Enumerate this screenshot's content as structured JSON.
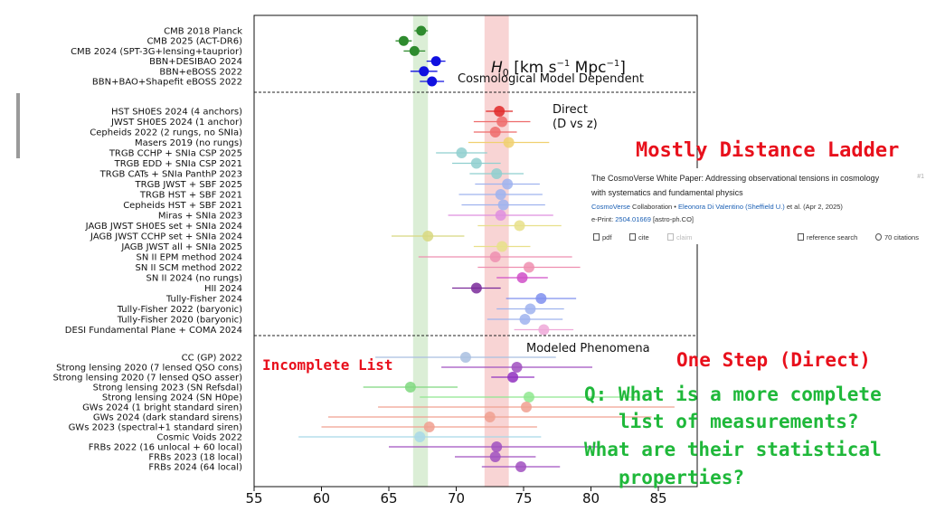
{
  "chart_data": {
    "type": "scatter",
    "title": "H_0 [km s^-1 Mpc^-1]",
    "title_parts": {
      "h": "H",
      "sub": "0",
      "unit_open": " [km s",
      "exp1": "−1",
      "unit_mid": " Mpc",
      "exp2": "−1",
      "unit_close": "]"
    },
    "xlim": [
      55,
      85
    ],
    "x_ticks": [
      "55",
      "60",
      "65",
      "70",
      "75",
      "80",
      "85"
    ],
    "bands": [
      {
        "center": 67.4,
        "low": 66.8,
        "high": 67.9,
        "color": "#cfe8c8"
      },
      {
        "center": 73.0,
        "low": 72.1,
        "high": 73.9,
        "color": "#f6c6c6"
      }
    ],
    "sections": [
      {
        "label": "Cosmological Model Dependent"
      },
      {
        "label": "Direct\n(D vs z)"
      },
      {
        "label": "Modeled Phenomena"
      }
    ],
    "points": [
      {
        "label": "CMB 2018 Planck",
        "x": 67.4,
        "err": 0.5,
        "section": 0,
        "color": "#2e8b2e"
      },
      {
        "label": "CMB 2025 (ACT-DR6)",
        "x": 66.1,
        "err": 0.6,
        "section": 0,
        "color": "#2e8b2e"
      },
      {
        "label": "CMB 2024 (SPT-3G+lensing+tauprior)",
        "x": 66.9,
        "err": 0.8,
        "section": 0,
        "color": "#2e8b2e"
      },
      {
        "label": "BBN+DESIBAO 2024",
        "x": 68.5,
        "err": 0.7,
        "section": 0,
        "color": "#1010e0"
      },
      {
        "label": "BBN+eBOSS 2022",
        "x": 67.6,
        "err": 1.0,
        "section": 0,
        "color": "#1010e0"
      },
      {
        "label": "BBN+BAO+Shapefit eBOSS 2022",
        "x": 68.2,
        "err": 0.9,
        "section": 0,
        "color": "#1010e0"
      },
      {
        "label": "HST SH0ES 2024 (4 anchors)",
        "x": 73.2,
        "err": 1.0,
        "section": 1,
        "color": "#e02828"
      },
      {
        "label": "JWST SH0ES 2024 (1 anchor)",
        "x": 73.4,
        "err": 2.1,
        "section": 1,
        "color": "#ee6b6b"
      },
      {
        "label": "Cepheids 2022 (2 rungs, no SNIa)",
        "x": 72.9,
        "err": 1.6,
        "section": 1,
        "color": "#ee6b6b"
      },
      {
        "label": "Masers 2019 (no rungs)",
        "x": 73.9,
        "err": 3.0,
        "section": 1,
        "color": "#f0d070"
      },
      {
        "label": "TRGB CCHP + SNIa CSP 2025",
        "x": 70.4,
        "err": 1.9,
        "section": 1,
        "color": "#8fcfcf"
      },
      {
        "label": "TRGB EDD + SNIa CSP 2021",
        "x": 71.5,
        "err": 1.8,
        "section": 1,
        "color": "#8fcfcf"
      },
      {
        "label": "TRGB CATs + SNIa PanthP 2023",
        "x": 73.0,
        "err": 2.0,
        "section": 1,
        "color": "#8fcfcf"
      },
      {
        "label": "TRGB JWST + SBF 2025",
        "x": 73.8,
        "err": 2.4,
        "section": 1,
        "color": "#9fb3ee"
      },
      {
        "label": "TRGB HST + SBF 2021",
        "x": 73.3,
        "err": 3.1,
        "section": 1,
        "color": "#9fb3ee"
      },
      {
        "label": "Cepheids HST + SBF 2021",
        "x": 73.5,
        "err": 3.1,
        "section": 1,
        "color": "#9fb3ee"
      },
      {
        "label": "Miras + SNIa 2023",
        "x": 73.3,
        "err": 3.9,
        "section": 1,
        "color": "#df8fdf"
      },
      {
        "label": "JAGB JWST SH0ES set + SNIa 2024",
        "x": 74.7,
        "err": 3.1,
        "section": 1,
        "color": "#e8e08a"
      },
      {
        "label": "JAGB JWST CCHP set + SNIa 2024",
        "x": 67.9,
        "err": 2.7,
        "section": 1,
        "color": "#d8d880"
      },
      {
        "label": "JAGB JWST all + SNIa 2025",
        "x": 73.4,
        "err": 2.1,
        "section": 1,
        "color": "#e8e08a"
      },
      {
        "label": "SN II EPM method 2024",
        "x": 72.9,
        "err": 5.7,
        "section": 1,
        "color": "#ee8fb0"
      },
      {
        "label": "SN II SCM method 2022",
        "x": 75.4,
        "err": 3.8,
        "section": 1,
        "color": "#ee8fb0"
      },
      {
        "label": "SN II 2024 (no rungs)",
        "x": 74.9,
        "err": 1.9,
        "section": 1,
        "color": "#d04fc8"
      },
      {
        "label": "HII 2024",
        "x": 71.5,
        "err": 1.8,
        "section": 1,
        "color": "#7a2a9a"
      },
      {
        "label": "Tully-Fisher 2024",
        "x": 76.3,
        "err": 2.6,
        "section": 1,
        "color": "#7f8fee"
      },
      {
        "label": "Tully-Fisher 2022 (baryonic)",
        "x": 75.5,
        "err": 2.5,
        "section": 1,
        "color": "#9fb3ee"
      },
      {
        "label": "Tully-Fisher 2020 (baryonic)",
        "x": 75.1,
        "err": 2.8,
        "section": 1,
        "color": "#9fb3ee"
      },
      {
        "label": "DESI Fundamental Plane + COMA 2024",
        "x": 76.5,
        "err": 2.2,
        "section": 1,
        "color": "#eea8d8"
      },
      {
        "label": "CC (GP) 2022",
        "x": 70.7,
        "err": 6.7,
        "section": 2,
        "color": "#a9bfe0"
      },
      {
        "label": "Strong lensing 2020 (7 lensed QSO cons)",
        "x": 74.5,
        "err": 5.6,
        "section": 2,
        "color": "#a050c0"
      },
      {
        "label": "Strong lensing 2020 (7 lensed QSO asser)",
        "x": 74.2,
        "err": 1.6,
        "section": 2,
        "color": "#9030c0"
      },
      {
        "label": "Strong lensing 2023 (SN Refsdal)",
        "x": 66.6,
        "err": 3.5,
        "section": 2,
        "color": "#7fd87f"
      },
      {
        "label": "Strong lensing 2024 (SN H0pe)",
        "x": 75.4,
        "err": 8.1,
        "section": 2,
        "color": "#8fe88f"
      },
      {
        "label": "GWs 2024 (1 bright standard siren)",
        "x": 75.2,
        "err": 11.0,
        "section": 2,
        "color": "#f0a090"
      },
      {
        "label": "GWs 2024 (dark standard sirens)",
        "x": 72.5,
        "err": 12.0,
        "section": 2,
        "color": "#f0a090"
      },
      {
        "label": "GWs 2023 (spectral+1 standard siren)",
        "x": 68.0,
        "err": 8.0,
        "section": 2,
        "color": "#f0a090"
      },
      {
        "label": "Cosmic Voids 2022",
        "x": 67.3,
        "err": 9.0,
        "section": 2,
        "color": "#a8d8e8"
      },
      {
        "label": "FRBs 2022 (16 unlocal + 60 local)",
        "x": 73.0,
        "err": 8.0,
        "section": 2,
        "color": "#a050c0"
      },
      {
        "label": "FRBs 2023 (18 local)",
        "x": 72.9,
        "err": 3.0,
        "section": 2,
        "color": "#a050c0"
      },
      {
        "label": "FRBs 2024 (64 local)",
        "x": 74.8,
        "err": 2.9,
        "section": 2,
        "color": "#a050c0"
      }
    ]
  },
  "paper": {
    "title_line1": "The CosmoVerse White Paper: Addressing observational tensions in cosmology",
    "title_line2": "with systematics and fundamental physics",
    "collab": "CosmoVerse",
    "collab_suffix": " Collaboration • ",
    "author": "Eleonora Di Valentino (Sheffield U.)",
    "author_suffix": " et al. (Apr 2, 2025)",
    "eprint_prefix": "e-Print: ",
    "eprint_id": "2504.01669",
    "eprint_suffix": " [astro-ph.CO]",
    "index": "#1",
    "actions": {
      "pdf": "pdf",
      "cite": "cite",
      "claim": "claim",
      "refsearch": "reference search",
      "citations": "70 citations"
    }
  },
  "annotations": {
    "mostly": "Mostly Distance Ladder",
    "incomplete": "Incomplete List",
    "onestep": "One Step (Direct)",
    "q1": "Q: What is a more complete",
    "q2": "list of measurements?",
    "q3": "What are their statistical",
    "q4": "properties?"
  }
}
